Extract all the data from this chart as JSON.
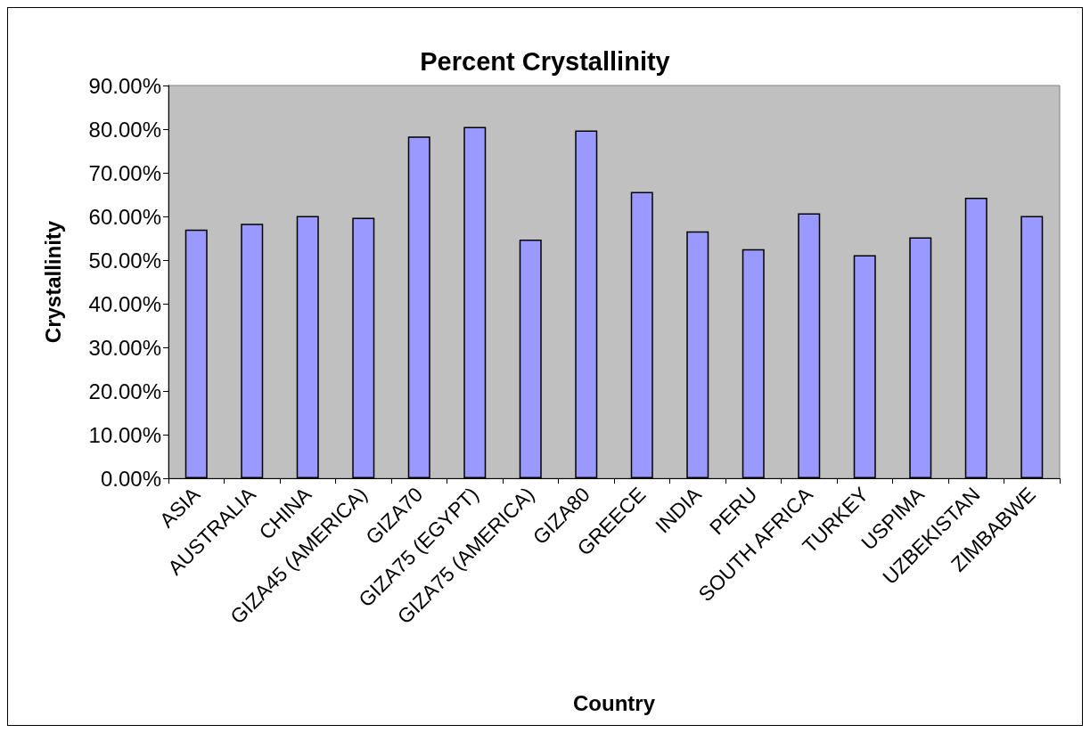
{
  "chart_data": {
    "type": "bar",
    "title": "Percent Crystallinity",
    "xlabel": "Country",
    "ylabel": "Crystallinity",
    "categories": [
      "ASIA",
      "AUSTRALIA",
      "CHINA",
      "GIZA45 (AMERICA)",
      "GIZA70",
      "GIZA75 (EGYPT)",
      "GIZA75 (AMERICA)",
      "GIZA80",
      "GREECE",
      "INDIA",
      "PERU",
      "SOUTH AFRICA",
      "TURKEY",
      "USPIMA",
      "UZBEKISTAN",
      "ZIMBABWE"
    ],
    "values": [
      57.0,
      58.3,
      60.1,
      59.7,
      78.3,
      80.5,
      54.7,
      79.7,
      65.6,
      56.6,
      52.5,
      60.7,
      51.1,
      55.2,
      64.3,
      60.1
    ],
    "color": "#9999ff",
    "ylim": [
      0,
      90
    ],
    "yticks": [
      {
        "value": 0,
        "label": "0.00%"
      },
      {
        "value": 10,
        "label": "10.00%"
      },
      {
        "value": 20,
        "label": "20.00%"
      },
      {
        "value": 30,
        "label": "30.00%"
      },
      {
        "value": 40,
        "label": "40.00%"
      },
      {
        "value": 50,
        "label": "50.00%"
      },
      {
        "value": 60,
        "label": "60.00%"
      },
      {
        "value": 70,
        "label": "70.00%"
      },
      {
        "value": 80,
        "label": "80.00%"
      },
      {
        "value": 90,
        "label": "90.00%"
      }
    ],
    "grid": false
  }
}
